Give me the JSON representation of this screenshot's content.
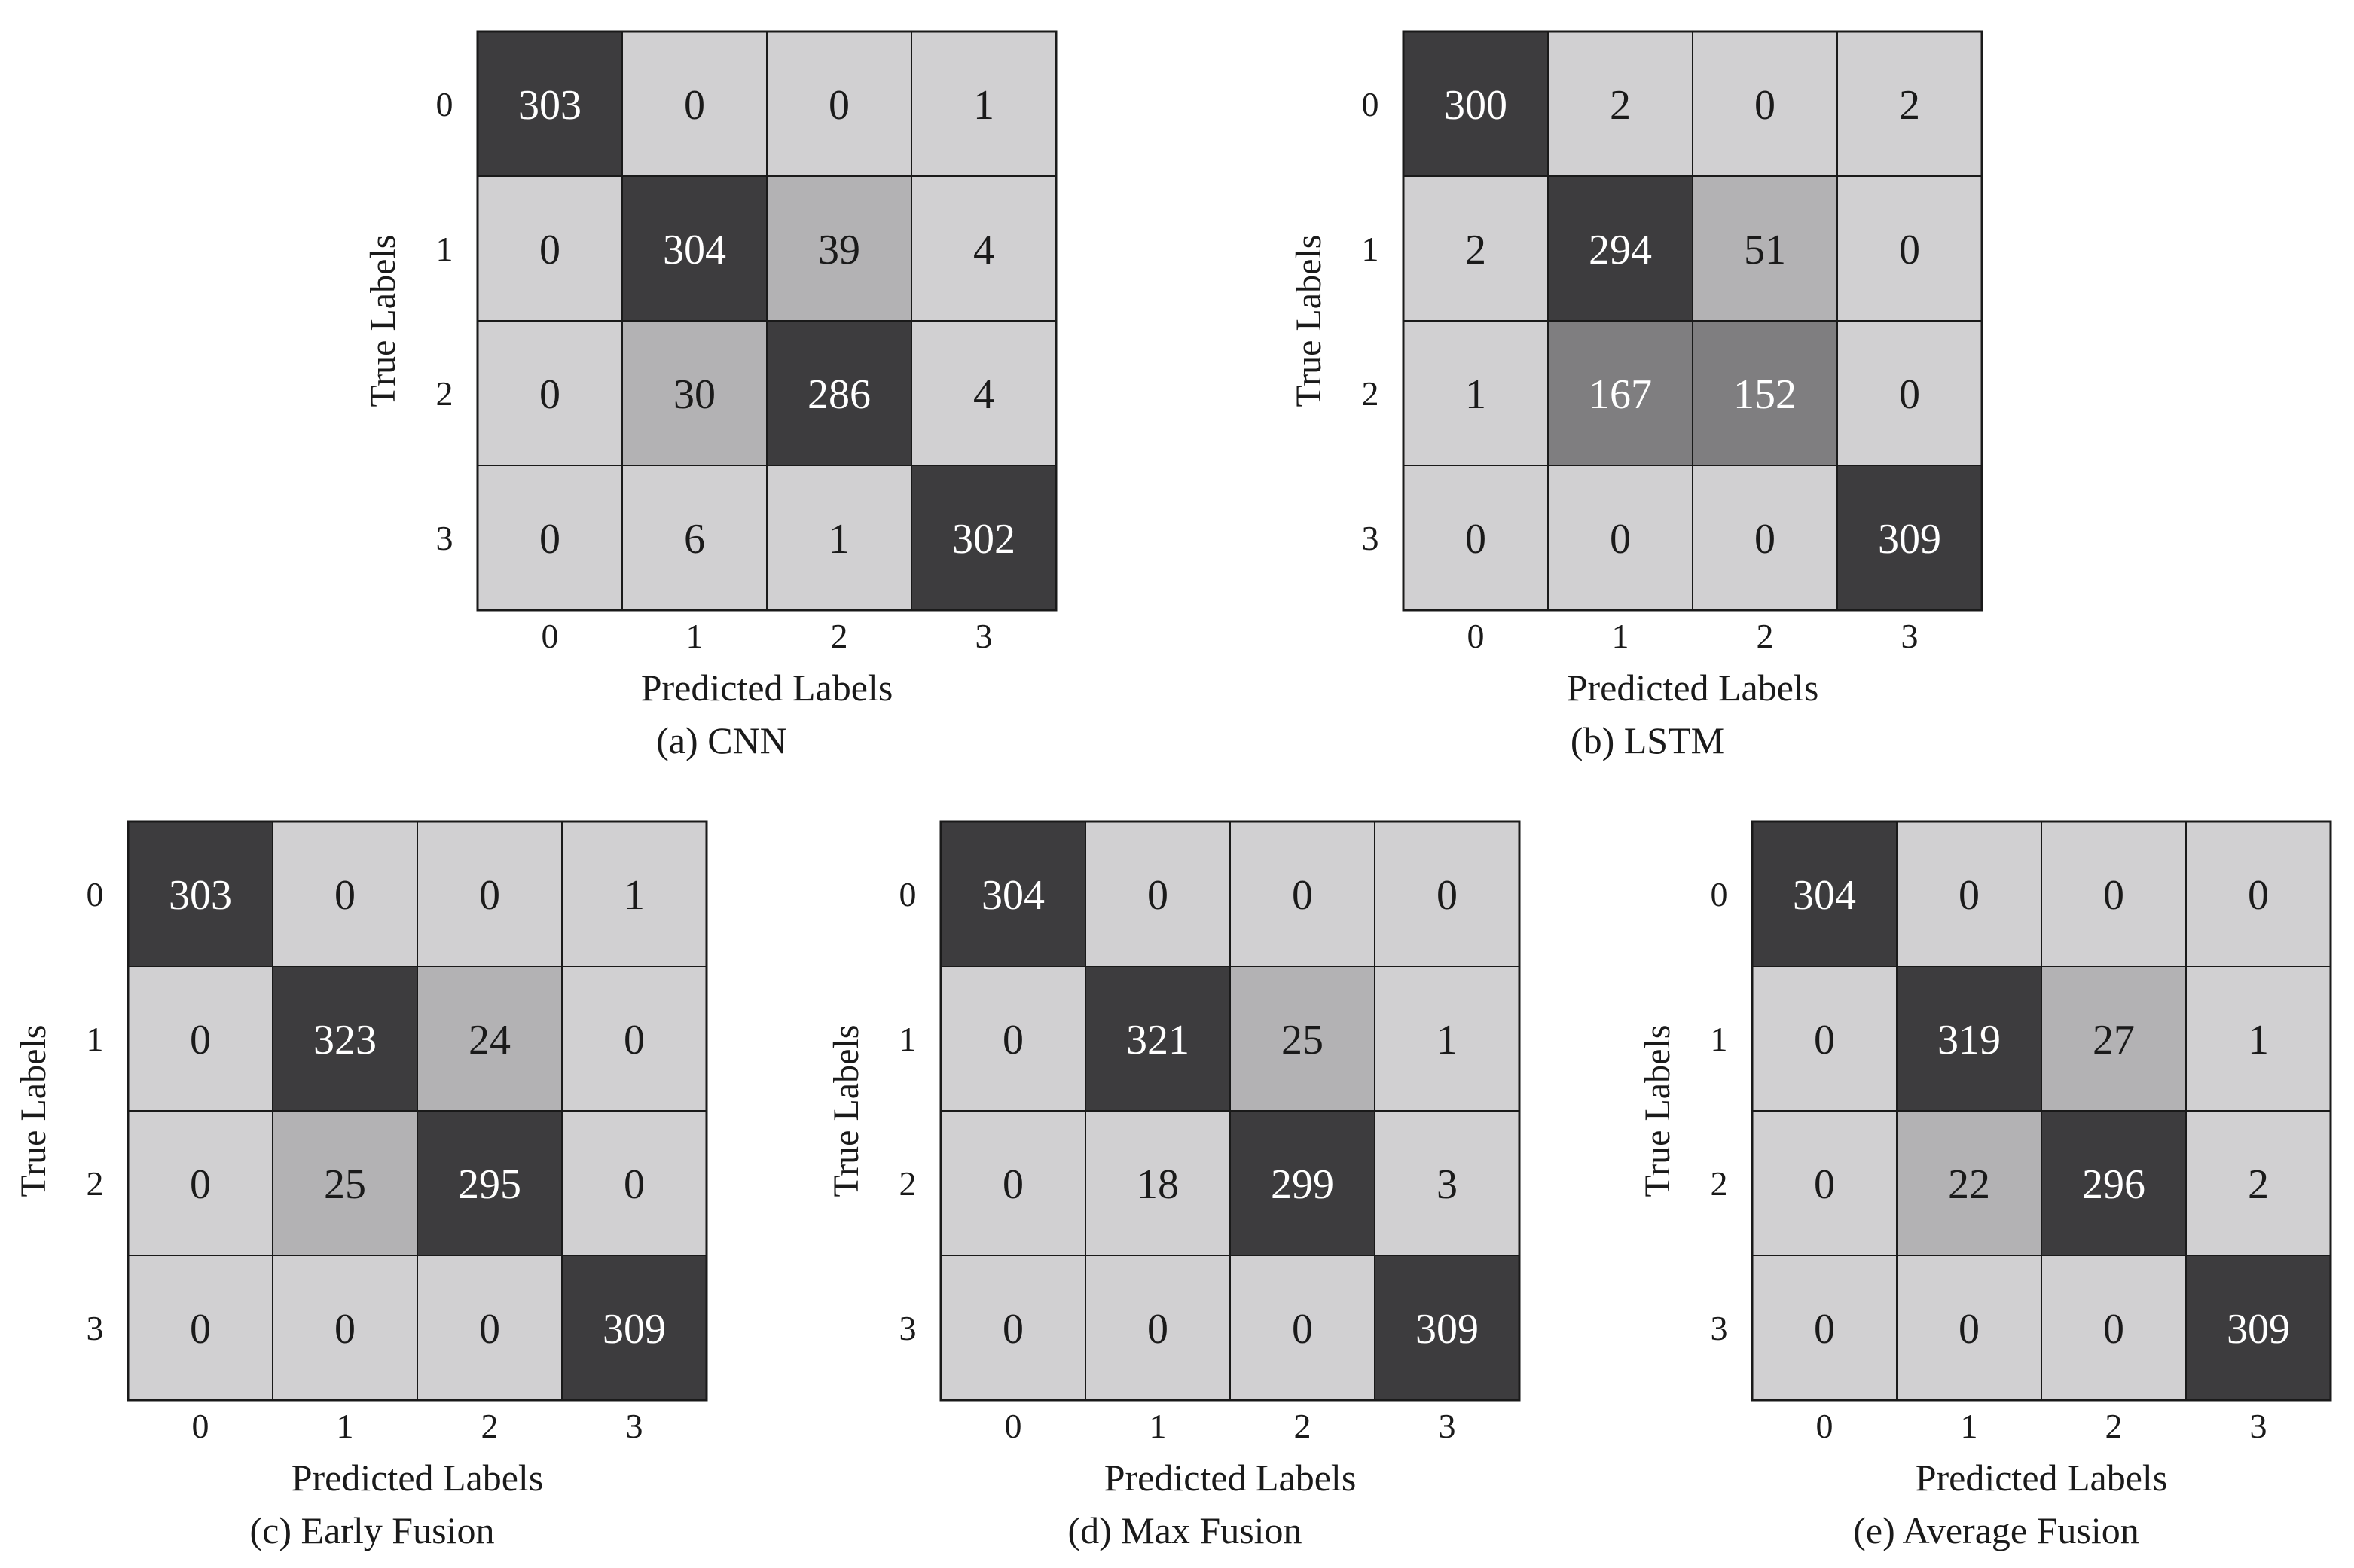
{
  "chart_data": [
    {
      "type": "heatmap",
      "title": "",
      "caption": "(a) CNN",
      "xlabel": "Predicted Labels",
      "ylabel": "True Labels",
      "x_ticks": [
        "0",
        "1",
        "2",
        "3"
      ],
      "y_ticks": [
        "0",
        "1",
        "2",
        "3"
      ],
      "values": [
        [
          303,
          0,
          0,
          1
        ],
        [
          0,
          304,
          39,
          4
        ],
        [
          0,
          30,
          286,
          4
        ],
        [
          0,
          6,
          1,
          302
        ]
      ]
    },
    {
      "type": "heatmap",
      "title": "",
      "caption": "(b) LSTM",
      "xlabel": "Predicted Labels",
      "ylabel": "True Labels",
      "x_ticks": [
        "0",
        "1",
        "2",
        "3"
      ],
      "y_ticks": [
        "0",
        "1",
        "2",
        "3"
      ],
      "values": [
        [
          300,
          2,
          0,
          2
        ],
        [
          2,
          294,
          51,
          0
        ],
        [
          1,
          167,
          152,
          0
        ],
        [
          0,
          0,
          0,
          309
        ]
      ]
    },
    {
      "type": "heatmap",
      "title": "",
      "caption": "(c) Early Fusion",
      "xlabel": "Predicted Labels",
      "ylabel": "True Labels",
      "x_ticks": [
        "0",
        "1",
        "2",
        "3"
      ],
      "y_ticks": [
        "0",
        "1",
        "2",
        "3"
      ],
      "values": [
        [
          303,
          0,
          0,
          1
        ],
        [
          0,
          323,
          24,
          0
        ],
        [
          0,
          25,
          295,
          0
        ],
        [
          0,
          0,
          0,
          309
        ]
      ]
    },
    {
      "type": "heatmap",
      "title": "",
      "caption": "(d) Max Fusion",
      "xlabel": "Predicted Labels",
      "ylabel": "True Labels",
      "x_ticks": [
        "0",
        "1",
        "2",
        "3"
      ],
      "y_ticks": [
        "0",
        "1",
        "2",
        "3"
      ],
      "values": [
        [
          304,
          0,
          0,
          0
        ],
        [
          0,
          321,
          25,
          1
        ],
        [
          0,
          18,
          299,
          3
        ],
        [
          0,
          0,
          0,
          309
        ]
      ]
    },
    {
      "type": "heatmap",
      "title": "",
      "caption": "(e) Average Fusion",
      "xlabel": "Predicted Labels",
      "ylabel": "True Labels",
      "x_ticks": [
        "0",
        "1",
        "2",
        "3"
      ],
      "y_ticks": [
        "0",
        "1",
        "2",
        "3"
      ],
      "values": [
        [
          304,
          0,
          0,
          0
        ],
        [
          0,
          319,
          27,
          1
        ],
        [
          0,
          22,
          296,
          2
        ],
        [
          0,
          0,
          0,
          309
        ]
      ]
    }
  ],
  "colors": {
    "background": "#ffffff",
    "cell_high": "#3d3c3e",
    "cell_mid": "#7f7e80",
    "cell_medium_light": "#b3b2b4",
    "cell_low": "#d1d0d2",
    "grid_line": "#1a1a1a",
    "text_dark": "#1a1a1a",
    "text_light": "#ffffff"
  }
}
